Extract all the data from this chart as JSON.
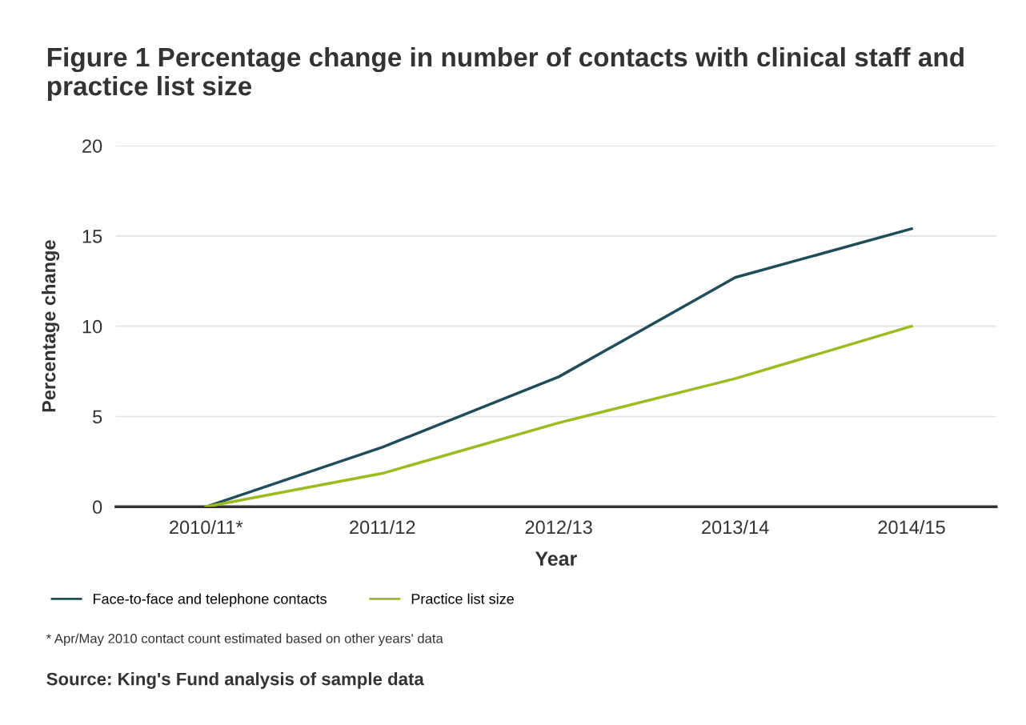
{
  "chart_data": {
    "type": "line",
    "title": "Figure 1 Percentage change in number of contacts with clinical staff and practice list size",
    "xlabel": "Year",
    "ylabel": "Percentage change",
    "categories": [
      "2010/11*",
      "2011/12",
      "2012/13",
      "2013/14",
      "2014/15"
    ],
    "series": [
      {
        "name": "Face-to-face and telephone contacts",
        "color": "#1f4e5a",
        "values": [
          0,
          3.3,
          7.2,
          12.7,
          15.4
        ]
      },
      {
        "name": "Practice list size",
        "color": "#9bbb1f",
        "values": [
          0,
          1.85,
          4.65,
          7.1,
          10.0
        ]
      }
    ],
    "ylim": [
      0,
      20
    ],
    "yticks": [
      0,
      5,
      10,
      15,
      20
    ],
    "grid": "y",
    "legend": "bottom",
    "marker": "none",
    "line_style": "solid",
    "annotations": [
      "* Apr/May 2010 contact count estimated based on other years' data",
      "Source: King's Fund analysis of sample data"
    ]
  }
}
